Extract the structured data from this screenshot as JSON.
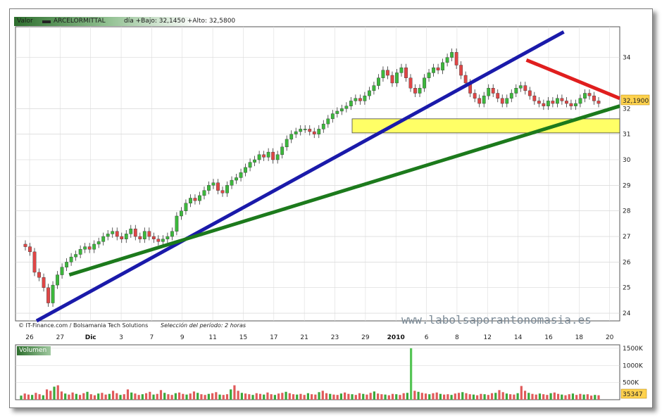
{
  "header": {
    "label_valor": "Valor",
    "ticker": "ARCELORMITTAL",
    "stats": "día +Bajo: 32,1450 +Alto: 32,5800"
  },
  "footer": {
    "credits": "© IT-Finance.com / Bolsamania Tech Solutions",
    "period": "Selección del período: 2 horas",
    "watermark": "www.labolsaporantonomasia.es"
  },
  "price_label": "32,1900",
  "volume": {
    "label": "Volumen",
    "ticks": [
      "1500K",
      "1000K",
      "500K"
    ],
    "last_value": "35347",
    "series": [
      120,
      180,
      150,
      140,
      200,
      160,
      130,
      300,
      260,
      380,
      420,
      240,
      180,
      150,
      210,
      170,
      140,
      190,
      230,
      160,
      130,
      180,
      200,
      150,
      170,
      260,
      190,
      140,
      160,
      300,
      210,
      180,
      140,
      160,
      190,
      230,
      150,
      170,
      280,
      200,
      160,
      140,
      190,
      210,
      170,
      150,
      180,
      240,
      200,
      160,
      140,
      170,
      190,
      220,
      150,
      140,
      160,
      300,
      420,
      260,
      200,
      180,
      160,
      140,
      190,
      170,
      150,
      210,
      160,
      140,
      180,
      200,
      230,
      190,
      160,
      150,
      170,
      140,
      190,
      160,
      150,
      220,
      260,
      190,
      170,
      150,
      140,
      180,
      210,
      170,
      160,
      140,
      190,
      170,
      150,
      200,
      240,
      180,
      160,
      150,
      130,
      170,
      160,
      140,
      190,
      200,
      1500,
      260,
      230,
      200,
      180,
      160,
      190,
      210,
      170,
      150,
      160,
      140,
      180,
      200,
      220,
      190,
      160,
      150,
      130,
      170,
      160,
      140,
      190,
      200,
      280,
      220,
      180,
      160,
      150,
      190,
      400,
      260,
      200,
      170,
      150,
      180,
      160,
      140,
      190,
      210,
      170,
      150,
      130,
      160,
      180,
      140,
      170,
      150,
      160,
      120,
      140,
      130
    ]
  },
  "chart_data": {
    "type": "line",
    "title": "ARCELORMITTAL",
    "subtitle": "día +Bajo: 32,1450 +Alto: 32,5800",
    "xlabel": "",
    "ylabel": "",
    "ylim": [
      23.7,
      35.2
    ],
    "y_ticks": [
      24,
      25,
      26,
      27,
      28,
      29,
      30,
      31,
      32,
      34
    ],
    "x_ticks": [
      "26",
      "27",
      "Dic",
      "3",
      "7",
      "9",
      "11",
      "15",
      "17",
      "21",
      "23",
      "29",
      "2010",
      "6",
      "8",
      "12",
      "14",
      "16",
      "18",
      "20"
    ],
    "x_ticks_bold": [
      "Dic",
      "2010"
    ],
    "grid": true,
    "series": [
      {
        "name": "ARCELORMITTAL",
        "values": [
          26.6,
          26.4,
          25.6,
          25.4,
          25.0,
          24.4,
          25.1,
          25.5,
          25.8,
          26.0,
          26.2,
          26.3,
          26.5,
          26.6,
          26.5,
          26.7,
          26.8,
          27.0,
          27.1,
          27.2,
          27.0,
          26.9,
          27.1,
          27.3,
          27.0,
          26.9,
          27.2,
          27.0,
          26.9,
          26.8,
          26.9,
          27.0,
          27.2,
          27.8,
          28.0,
          28.3,
          28.5,
          28.4,
          28.6,
          28.8,
          29.0,
          29.1,
          28.8,
          28.7,
          29.0,
          29.2,
          29.3,
          29.5,
          29.7,
          29.9,
          30.0,
          30.2,
          30.1,
          30.3,
          30.0,
          30.2,
          30.5,
          30.8,
          31.0,
          31.1,
          31.2,
          31.2,
          31.1,
          31.0,
          31.2,
          31.4,
          31.6,
          31.8,
          31.9,
          32.0,
          32.1,
          32.3,
          32.4,
          32.3,
          32.5,
          32.7,
          32.9,
          33.2,
          33.5,
          33.3,
          33.0,
          33.4,
          33.6,
          33.2,
          32.8,
          32.6,
          32.8,
          33.2,
          33.4,
          33.6,
          33.5,
          33.8,
          34.0,
          34.2,
          33.7,
          33.3,
          33.0,
          32.6,
          32.4,
          32.2,
          32.5,
          32.8,
          32.6,
          32.4,
          32.2,
          32.4,
          32.6,
          32.8,
          32.9,
          32.7,
          32.5,
          32.3,
          32.2,
          32.1,
          32.3,
          32.2,
          32.4,
          32.3,
          32.2,
          32.1,
          32.2,
          32.4,
          32.6,
          32.5,
          32.3,
          32.2
        ]
      }
    ],
    "trend_lines": [
      {
        "color": "#1a1aaa",
        "from": [
          0,
          23.7
        ],
        "to": [
          113,
          35.0
        ]
      },
      {
        "color": "#1c7a1c",
        "from": [
          7,
          25.5
        ],
        "to": [
          136,
          32.1
        ]
      },
      {
        "color": "#e01e1e",
        "from": [
          105,
          33.9
        ],
        "to": [
          136,
          32.4
        ]
      }
    ],
    "support_zone": {
      "color": "#ffff66",
      "y": [
        31.05,
        31.6
      ]
    }
  }
}
